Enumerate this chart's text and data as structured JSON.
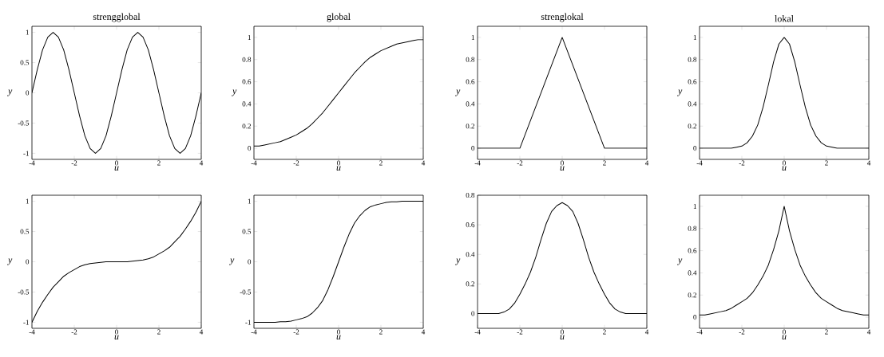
{
  "chart_data": [
    {
      "type": "line",
      "title": "strengglobal",
      "xlabel": "u",
      "ylabel": "y",
      "xlim": [
        -4,
        4
      ],
      "ylim": [
        -1.1,
        1.1
      ],
      "xticks": [
        -4,
        -2,
        0,
        2,
        4
      ],
      "yticks": [
        -1,
        -0.5,
        0,
        0.5,
        1
      ],
      "x": [
        -4,
        -3.75,
        -3.5,
        -3.25,
        -3,
        -2.75,
        -2.5,
        -2.25,
        -2,
        -1.75,
        -1.5,
        -1.25,
        -1,
        -0.75,
        -0.5,
        -0.25,
        0,
        0.25,
        0.5,
        0.75,
        1,
        1.25,
        1.5,
        1.75,
        2,
        2.25,
        2.5,
        2.75,
        3,
        3.25,
        3.5,
        3.75,
        4
      ],
      "series": [
        {
          "color": "#000000",
          "values": [
            0,
            0.38,
            0.71,
            0.92,
            1,
            0.92,
            0.71,
            0.38,
            0,
            -0.38,
            -0.71,
            -0.92,
            -1,
            -0.92,
            -0.71,
            -0.38,
            0,
            0.38,
            0.71,
            0.92,
            1,
            0.92,
            0.71,
            0.38,
            0,
            -0.38,
            -0.71,
            -0.92,
            -1,
            -0.92,
            -0.71,
            -0.38,
            0
          ]
        }
      ]
    },
    {
      "type": "line",
      "title": "global",
      "xlabel": "u",
      "ylabel": "y",
      "xlim": [
        -4,
        4
      ],
      "ylim": [
        -0.1,
        1.1
      ],
      "xticks": [
        -4,
        -2,
        0,
        2,
        4
      ],
      "yticks": [
        0,
        0.2,
        0.4,
        0.6,
        0.8,
        1
      ],
      "x": [
        -4,
        -3.75,
        -3.5,
        -3.25,
        -3,
        -2.75,
        -2.5,
        -2.25,
        -2,
        -1.75,
        -1.5,
        -1.25,
        -1,
        -0.75,
        -0.5,
        -0.25,
        0,
        0.25,
        0.5,
        0.75,
        1,
        1.25,
        1.5,
        1.75,
        2,
        2.25,
        2.5,
        2.75,
        3,
        3.25,
        3.5,
        3.75,
        4
      ],
      "series": [
        {
          "color": "#000000",
          "values": [
            0.02,
            0.02,
            0.03,
            0.04,
            0.05,
            0.06,
            0.08,
            0.1,
            0.12,
            0.15,
            0.18,
            0.22,
            0.27,
            0.32,
            0.38,
            0.44,
            0.5,
            0.56,
            0.62,
            0.68,
            0.73,
            0.78,
            0.82,
            0.85,
            0.88,
            0.9,
            0.92,
            0.94,
            0.95,
            0.96,
            0.97,
            0.98,
            0.98
          ]
        }
      ]
    },
    {
      "type": "line",
      "title": "strenglokal",
      "xlabel": "u",
      "ylabel": "y",
      "xlim": [
        -4,
        4
      ],
      "ylim": [
        -0.1,
        1.1
      ],
      "xticks": [
        -4,
        -2,
        0,
        2,
        4
      ],
      "yticks": [
        0,
        0.2,
        0.4,
        0.6,
        0.8,
        1
      ],
      "x": [
        -4,
        -2,
        0,
        2,
        4
      ],
      "series": [
        {
          "color": "#000000",
          "values": [
            0,
            0,
            1,
            0,
            0
          ]
        }
      ]
    },
    {
      "type": "line",
      "title": "lokal",
      "xlabel": "u",
      "ylabel": "y",
      "xlim": [
        -4,
        4
      ],
      "ylim": [
        -0.1,
        1.1
      ],
      "xticks": [
        -4,
        -2,
        0,
        2,
        4
      ],
      "yticks": [
        0,
        0.2,
        0.4,
        0.6,
        0.8,
        1
      ],
      "x": [
        -4,
        -3.75,
        -3.5,
        -3.25,
        -3,
        -2.75,
        -2.5,
        -2.25,
        -2,
        -1.75,
        -1.5,
        -1.25,
        -1,
        -0.75,
        -0.5,
        -0.25,
        0,
        0.25,
        0.5,
        0.75,
        1,
        1.25,
        1.5,
        1.75,
        2,
        2.25,
        2.5,
        2.75,
        3,
        3.25,
        3.5,
        3.75,
        4
      ],
      "series": [
        {
          "color": "#000000",
          "values": [
            0,
            0,
            0,
            0,
            0,
            0,
            0,
            0.01,
            0.02,
            0.05,
            0.11,
            0.21,
            0.37,
            0.57,
            0.78,
            0.94,
            1,
            0.94,
            0.78,
            0.57,
            0.37,
            0.21,
            0.11,
            0.05,
            0.02,
            0.01,
            0,
            0,
            0,
            0,
            0,
            0,
            0
          ]
        }
      ]
    },
    {
      "type": "line",
      "xlabel": "u",
      "ylabel": "y",
      "xlim": [
        -4,
        4
      ],
      "ylim": [
        -1.1,
        1.1
      ],
      "xticks": [
        -4,
        -2,
        0,
        2,
        4
      ],
      "yticks": [
        -1,
        -0.5,
        0,
        0.5,
        1
      ],
      "x": [
        -4,
        -3.75,
        -3.5,
        -3.25,
        -3,
        -2.75,
        -2.5,
        -2.25,
        -2,
        -1.75,
        -1.5,
        -1.25,
        -1,
        -0.75,
        -0.5,
        -0.25,
        0,
        0.25,
        0.5,
        0.75,
        1,
        1.25,
        1.5,
        1.75,
        2,
        2.25,
        2.5,
        2.75,
        3,
        3.25,
        3.5,
        3.75,
        4
      ],
      "series": [
        {
          "color": "#000000",
          "values": [
            -1,
            -0.82,
            -0.67,
            -0.54,
            -0.42,
            -0.33,
            -0.24,
            -0.18,
            -0.13,
            -0.08,
            -0.05,
            -0.03,
            -0.02,
            -0.01,
            0,
            0,
            0,
            0,
            0,
            0.01,
            0.02,
            0.03,
            0.05,
            0.08,
            0.13,
            0.18,
            0.24,
            0.33,
            0.42,
            0.54,
            0.67,
            0.82,
            1
          ]
        }
      ]
    },
    {
      "type": "line",
      "xlabel": "u",
      "ylabel": "y",
      "xlim": [
        -4,
        4
      ],
      "ylim": [
        -1.1,
        1.1
      ],
      "xticks": [
        -4,
        -2,
        0,
        2,
        4
      ],
      "yticks": [
        -1,
        -0.5,
        0,
        0.5,
        1
      ],
      "x": [
        -4,
        -3.75,
        -3.5,
        -3.25,
        -3,
        -2.75,
        -2.5,
        -2.25,
        -2,
        -1.75,
        -1.5,
        -1.25,
        -1,
        -0.75,
        -0.5,
        -0.25,
        0,
        0.25,
        0.5,
        0.75,
        1,
        1.25,
        1.5,
        1.75,
        2,
        2.25,
        2.5,
        2.75,
        3,
        3.25,
        3.5,
        3.75,
        4
      ],
      "series": [
        {
          "color": "#000000",
          "values": [
            -1,
            -1,
            -1,
            -1,
            -1,
            -0.99,
            -0.99,
            -0.98,
            -0.96,
            -0.94,
            -0.91,
            -0.85,
            -0.76,
            -0.64,
            -0.46,
            -0.24,
            0,
            0.24,
            0.46,
            0.64,
            0.76,
            0.85,
            0.91,
            0.94,
            0.96,
            0.98,
            0.99,
            0.99,
            1,
            1,
            1,
            1,
            1
          ]
        }
      ]
    },
    {
      "type": "line",
      "xlabel": "u",
      "ylabel": "y",
      "xlim": [
        -4,
        4
      ],
      "ylim": [
        -0.1,
        0.8
      ],
      "xticks": [
        -4,
        -2,
        0,
        2,
        4
      ],
      "yticks": [
        0,
        0.2,
        0.4,
        0.6,
        0.8
      ],
      "x": [
        -4,
        -3.75,
        -3.5,
        -3.25,
        -3,
        -2.75,
        -2.5,
        -2.25,
        -2,
        -1.75,
        -1.5,
        -1.25,
        -1,
        -0.75,
        -0.5,
        -0.25,
        0,
        0.25,
        0.5,
        0.75,
        1,
        1.25,
        1.5,
        1.75,
        2,
        2.25,
        2.5,
        2.75,
        3,
        3.25,
        3.5,
        3.75,
        4
      ],
      "series": [
        {
          "color": "#000000",
          "values": [
            0,
            0,
            0,
            0,
            0,
            0.01,
            0.03,
            0.07,
            0.13,
            0.2,
            0.28,
            0.38,
            0.5,
            0.61,
            0.69,
            0.73,
            0.75,
            0.73,
            0.69,
            0.61,
            0.5,
            0.38,
            0.28,
            0.2,
            0.13,
            0.07,
            0.03,
            0.01,
            0,
            0,
            0,
            0,
            0
          ]
        }
      ]
    },
    {
      "type": "line",
      "xlabel": "u",
      "ylabel": "y",
      "xlim": [
        -4,
        4
      ],
      "ylim": [
        -0.1,
        1.1
      ],
      "xticks": [
        -4,
        -2,
        0,
        2,
        4
      ],
      "yticks": [
        0,
        0.2,
        0.4,
        0.6,
        0.8,
        1
      ],
      "x": [
        -4,
        -3.75,
        -3.5,
        -3.25,
        -3,
        -2.75,
        -2.5,
        -2.25,
        -2,
        -1.75,
        -1.5,
        -1.25,
        -1,
        -0.75,
        -0.5,
        -0.25,
        0,
        0.25,
        0.5,
        0.75,
        1,
        1.25,
        1.5,
        1.75,
        2,
        2.25,
        2.5,
        2.75,
        3,
        3.25,
        3.5,
        3.75,
        4
      ],
      "series": [
        {
          "color": "#000000",
          "values": [
            0.02,
            0.02,
            0.03,
            0.04,
            0.05,
            0.06,
            0.08,
            0.11,
            0.14,
            0.17,
            0.22,
            0.29,
            0.37,
            0.47,
            0.61,
            0.78,
            1,
            0.78,
            0.61,
            0.47,
            0.37,
            0.29,
            0.22,
            0.17,
            0.14,
            0.11,
            0.08,
            0.06,
            0.05,
            0.04,
            0.03,
            0.02,
            0.02
          ]
        }
      ]
    }
  ]
}
